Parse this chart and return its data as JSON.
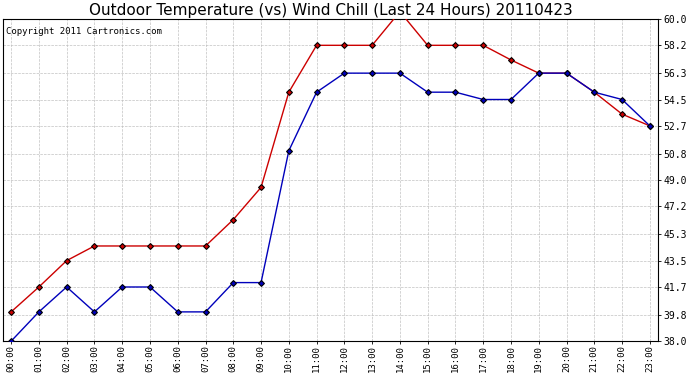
{
  "title": "Outdoor Temperature (vs) Wind Chill (Last 24 Hours) 20110423",
  "copyright": "Copyright 2011 Cartronics.com",
  "hours": [
    "00:00",
    "01:00",
    "02:00",
    "03:00",
    "04:00",
    "05:00",
    "06:00",
    "07:00",
    "08:00",
    "09:00",
    "10:00",
    "11:00",
    "12:00",
    "13:00",
    "14:00",
    "15:00",
    "16:00",
    "17:00",
    "18:00",
    "19:00",
    "20:00",
    "21:00",
    "22:00",
    "23:00"
  ],
  "outdoor_temp": [
    38.0,
    40.0,
    41.7,
    40.0,
    41.7,
    41.7,
    40.0,
    40.0,
    42.0,
    42.0,
    51.0,
    55.0,
    56.3,
    56.3,
    56.3,
    55.0,
    55.0,
    54.5,
    54.5,
    56.3,
    56.3,
    55.0,
    54.5,
    52.7
  ],
  "wind_chill": [
    40.0,
    41.7,
    43.5,
    44.5,
    44.5,
    44.5,
    44.5,
    44.5,
    46.3,
    48.5,
    55.0,
    58.2,
    58.2,
    58.2,
    60.5,
    58.2,
    58.2,
    58.2,
    57.2,
    56.3,
    56.3,
    55.0,
    53.5,
    52.7
  ],
  "outdoor_color": "#0000bb",
  "windchill_color": "#cc0000",
  "yticks": [
    38.0,
    39.8,
    41.7,
    43.5,
    45.3,
    47.2,
    49.0,
    50.8,
    52.7,
    54.5,
    56.3,
    58.2,
    60.0
  ],
  "ymin": 38.0,
  "ymax": 60.0,
  "background_color": "#ffffff",
  "grid_color": "#bbbbbb",
  "title_fontsize": 11,
  "copyright_fontsize": 6.5
}
